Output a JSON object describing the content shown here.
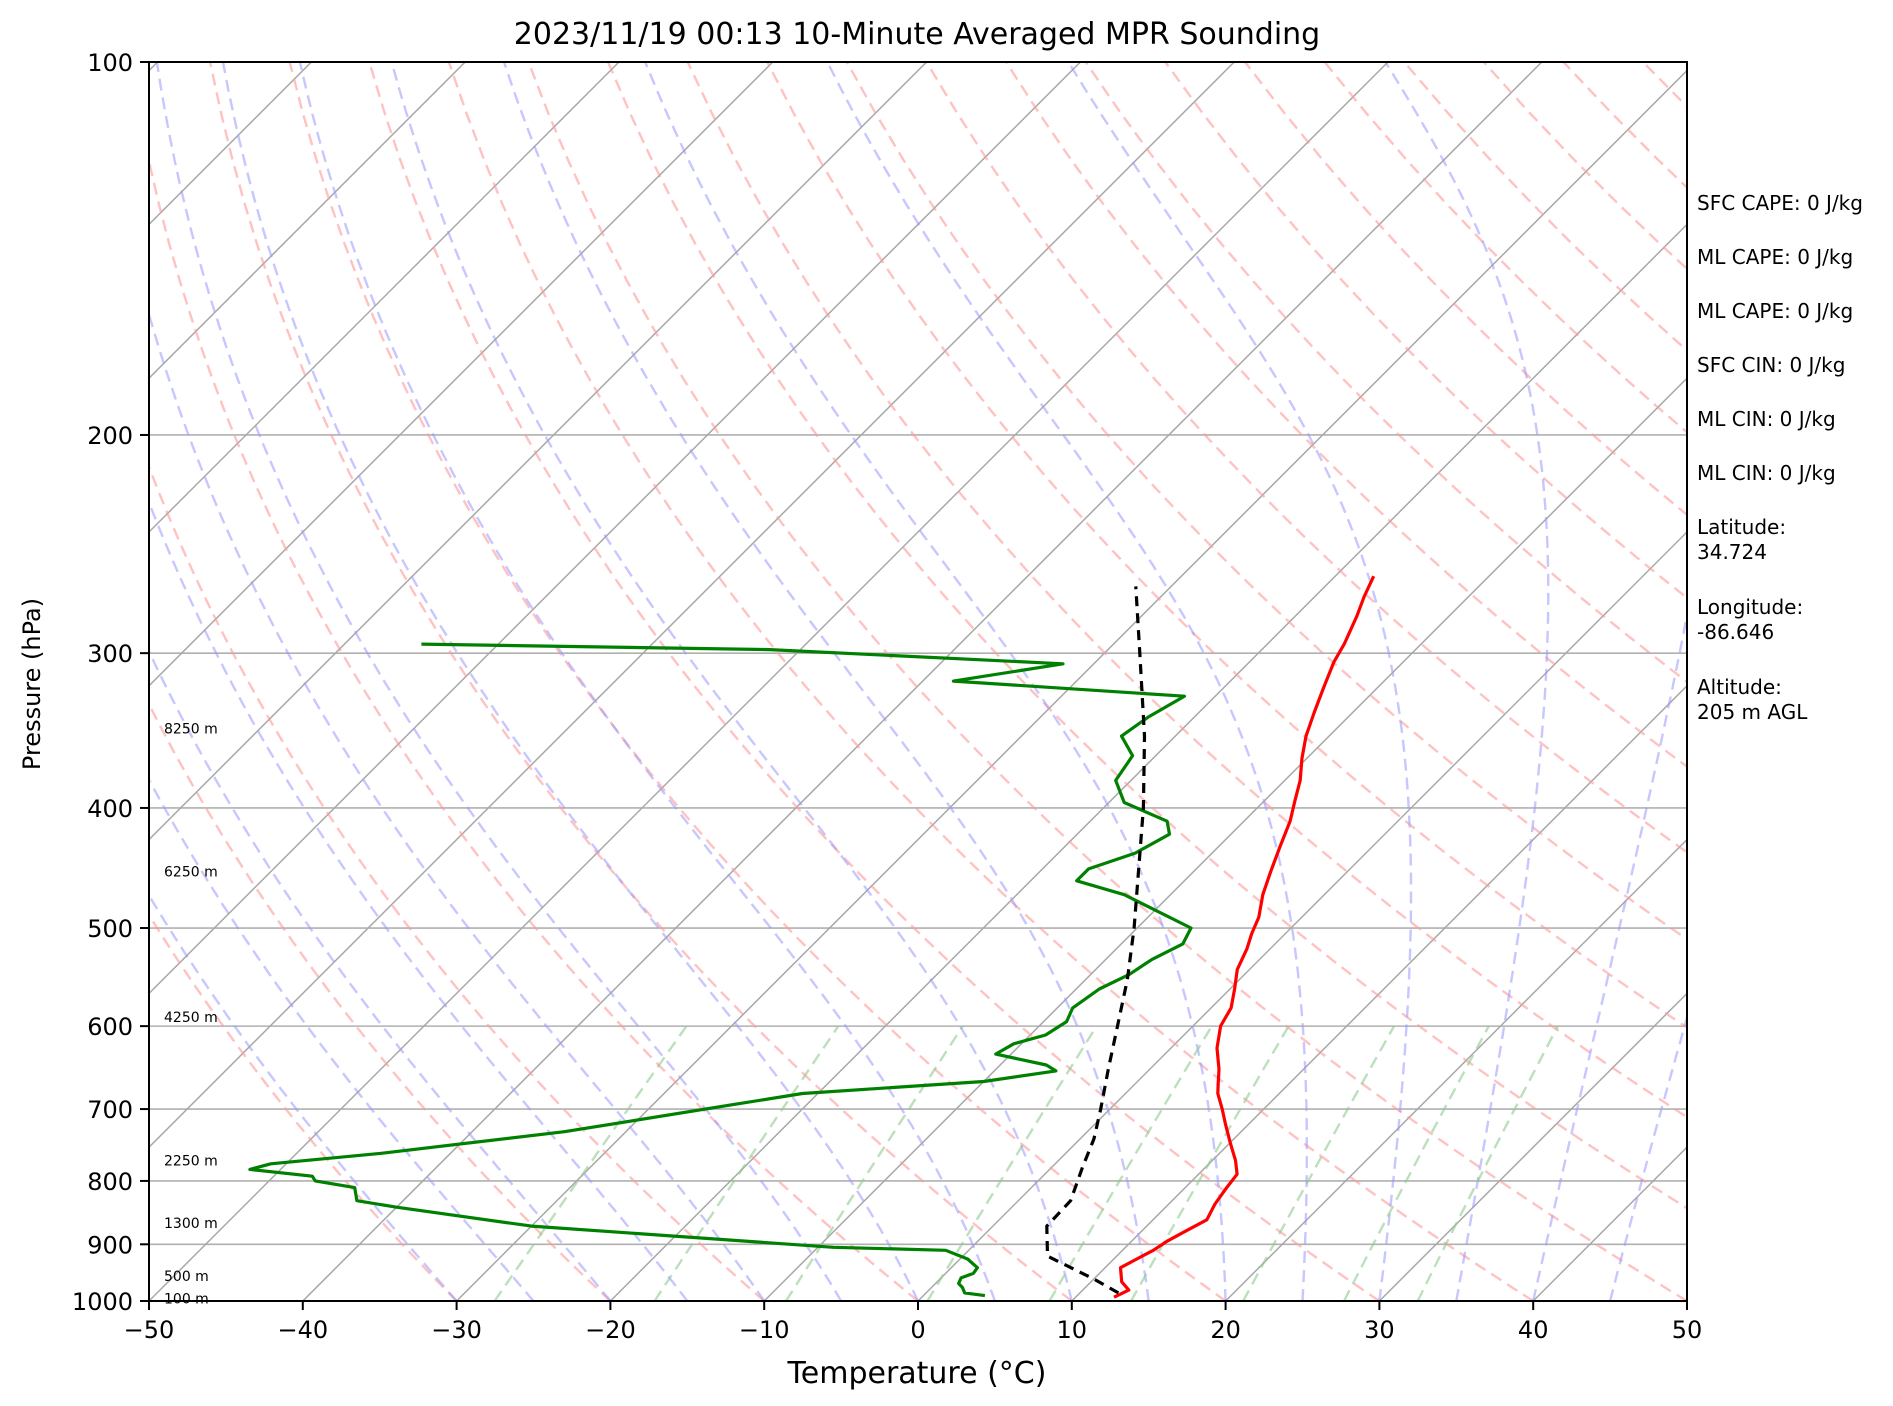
{
  "chart_data": {
    "type": "line",
    "title": "2023/11/19 00:13 10-Minute Averaged MPR Sounding",
    "xlabel": "Temperature (°C)",
    "ylabel": "Pressure (hPa)",
    "xlim": [
      -50,
      50
    ],
    "ylim": [
      1000,
      100
    ],
    "y_scale": "log",
    "skew": "skew-T",
    "grid": true,
    "xticks": [
      -50,
      -40,
      -30,
      -20,
      -10,
      0,
      10,
      20,
      30,
      40,
      50
    ],
    "xtick_labels": [
      "−50",
      "−40",
      "−30",
      "−20",
      "−10",
      "0",
      "10",
      "20",
      "30",
      "40",
      "50"
    ],
    "yticks": [
      100,
      200,
      300,
      400,
      500,
      600,
      700,
      800,
      900,
      1000
    ],
    "ytick_labels": [
      "100",
      "200",
      "300",
      "400",
      "500",
      "600",
      "700",
      "800",
      "900",
      "1000"
    ],
    "height_labels": [
      {
        "p": 345,
        "text": "8250 m"
      },
      {
        "p": 450,
        "text": "6250 m"
      },
      {
        "p": 590,
        "text": "4250 m"
      },
      {
        "p": 770,
        "text": "2250 m"
      },
      {
        "p": 865,
        "text": "1300 m"
      },
      {
        "p": 955,
        "text": "500 m"
      },
      {
        "p": 995,
        "text": "100 m"
      }
    ],
    "series": [
      {
        "color": "#ff0000",
        "points": [
          [
            993,
            12.5
          ],
          [
            980,
            13.0
          ],
          [
            965,
            12.0
          ],
          [
            940,
            11.0
          ],
          [
            925,
            11.5
          ],
          [
            910,
            12.0
          ],
          [
            895,
            12.3
          ],
          [
            880,
            12.8
          ],
          [
            860,
            13.5
          ],
          [
            835,
            13.0
          ],
          [
            810,
            12.7
          ],
          [
            790,
            12.5
          ],
          [
            770,
            11.5
          ],
          [
            745,
            10.0
          ],
          [
            720,
            8.5
          ],
          [
            700,
            7.3
          ],
          [
            680,
            6.0
          ],
          [
            670,
            5.5
          ],
          [
            650,
            4.5
          ],
          [
            625,
            3.0
          ],
          [
            600,
            1.8
          ],
          [
            580,
            1.3
          ],
          [
            560,
            0.3
          ],
          [
            540,
            -0.8
          ],
          [
            520,
            -1.5
          ],
          [
            505,
            -2.2
          ],
          [
            490,
            -2.8
          ],
          [
            470,
            -4.0
          ],
          [
            450,
            -5.0
          ],
          [
            430,
            -6.0
          ],
          [
            410,
            -7.0
          ],
          [
            395,
            -8.0
          ],
          [
            380,
            -9.0
          ],
          [
            365,
            -10.3
          ],
          [
            350,
            -11.5
          ],
          [
            335,
            -12.5
          ],
          [
            320,
            -13.5
          ],
          [
            305,
            -14.5
          ],
          [
            295,
            -15.0
          ],
          [
            280,
            -16.0
          ],
          [
            270,
            -16.8
          ],
          [
            260,
            -17.5
          ]
        ]
      },
      {
        "color": "#008000",
        "points": [
          [
            990,
            4.0
          ],
          [
            985,
            2.5
          ],
          [
            975,
            2.0
          ],
          [
            968,
            1.5
          ],
          [
            958,
            1.3
          ],
          [
            950,
            1.8
          ],
          [
            940,
            1.7
          ],
          [
            925,
            0.5
          ],
          [
            910,
            -1.5
          ],
          [
            905,
            -9.0
          ],
          [
            870,
            -30.0
          ],
          [
            840,
            -40.0
          ],
          [
            830,
            -43.0
          ],
          [
            810,
            -44.0
          ],
          [
            800,
            -47.0
          ],
          [
            793,
            -47.5
          ],
          [
            783,
            -52.0
          ],
          [
            775,
            -51.0
          ],
          [
            760,
            -44.5
          ],
          [
            730,
            -34.0
          ],
          [
            695,
            -25.0
          ],
          [
            680,
            -21.0
          ],
          [
            665,
            -10.0
          ],
          [
            652,
            -6.0
          ],
          [
            645,
            -7.0
          ],
          [
            632,
            -11.0
          ],
          [
            620,
            -10.5
          ],
          [
            610,
            -9.0
          ],
          [
            595,
            -8.5
          ],
          [
            580,
            -9.0
          ],
          [
            560,
            -8.5
          ],
          [
            545,
            -7.5
          ],
          [
            530,
            -7.0
          ],
          [
            515,
            -6.0
          ],
          [
            500,
            -6.5
          ],
          [
            470,
            -13.0
          ],
          [
            458,
            -17.0
          ],
          [
            448,
            -17.0
          ],
          [
            435,
            -15.0
          ],
          [
            420,
            -14.0
          ],
          [
            410,
            -15.0
          ],
          [
            396,
            -19.0
          ],
          [
            380,
            -21.0
          ],
          [
            363,
            -21.5
          ],
          [
            350,
            -23.5
          ],
          [
            338,
            -23.0
          ],
          [
            325,
            -22.0
          ],
          [
            316,
            -38.0
          ],
          [
            306,
            -32.0
          ],
          [
            298,
            -52.0
          ],
          [
            295,
            -75.0
          ]
        ]
      },
      {
        "color": "#000000",
        "dash": true,
        "points": [
          [
            985,
            12.5
          ],
          [
            960,
            10.0
          ],
          [
            920,
            5.5
          ],
          [
            870,
            3.5
          ],
          [
            830,
            3.4
          ],
          [
            780,
            2.0
          ],
          [
            740,
            0.9
          ],
          [
            700,
            -0.6
          ],
          [
            650,
            -2.7
          ],
          [
            600,
            -4.9
          ],
          [
            550,
            -7.3
          ],
          [
            500,
            -10.2
          ],
          [
            450,
            -13.6
          ],
          [
            400,
            -17.4
          ],
          [
            350,
            -22.0
          ],
          [
            300,
            -27.7
          ],
          [
            265,
            -32.3
          ]
        ]
      }
    ]
  },
  "annotations": [
    "SFC CAPE: 0 J/kg",
    "ML CAPE: 0 J/kg",
    "ML CAPE: 0 J/kg",
    "SFC CIN: 0 J/kg",
    "ML CIN: 0 J/kg",
    "ML CIN: 0 J/kg",
    "Latitude:\n34.724",
    "Longitude:\n-86.646",
    "Altitude:\n205 m AGL"
  ]
}
